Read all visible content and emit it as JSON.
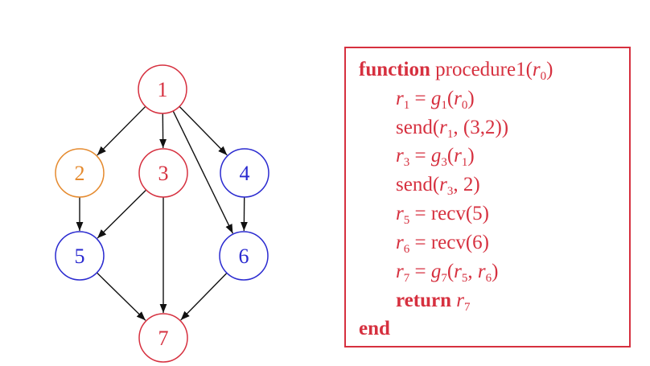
{
  "graph": {
    "colors": {
      "red": "#d6303f",
      "orange": "#e58a2e",
      "blue": "#2a2ad0",
      "edge": "#111111"
    },
    "nodes": [
      {
        "id": "1",
        "label": "1",
        "color": "red"
      },
      {
        "id": "2",
        "label": "2",
        "color": "orange"
      },
      {
        "id": "3",
        "label": "3",
        "color": "red"
      },
      {
        "id": "4",
        "label": "4",
        "color": "blue"
      },
      {
        "id": "5",
        "label": "5",
        "color": "blue"
      },
      {
        "id": "6",
        "label": "6",
        "color": "blue"
      },
      {
        "id": "7",
        "label": "7",
        "color": "red"
      }
    ],
    "edges": [
      {
        "from": "1",
        "to": "2"
      },
      {
        "from": "1",
        "to": "3"
      },
      {
        "from": "1",
        "to": "4"
      },
      {
        "from": "1",
        "to": "6"
      },
      {
        "from": "2",
        "to": "5"
      },
      {
        "from": "3",
        "to": "5"
      },
      {
        "from": "3",
        "to": "7"
      },
      {
        "from": "4",
        "to": "6"
      },
      {
        "from": "5",
        "to": "7"
      },
      {
        "from": "6",
        "to": "7"
      }
    ]
  },
  "code": {
    "l1": {
      "kw": "function",
      "name": "procedure1(",
      "arg": "r",
      "argsub": "0",
      "close": ")"
    },
    "l2": {
      "lhs": "r",
      "lhssub": "1",
      "eq": " = ",
      "fn": "g",
      "fnsub": "1",
      "open": "(",
      "arg": "r",
      "argsub": "0",
      "close": ")"
    },
    "l3": {
      "text": "send(",
      "arg": "r",
      "argsub": "1",
      "rest": ", (3,2))"
    },
    "l4": {
      "lhs": "r",
      "lhssub": "3",
      "eq": " = ",
      "fn": "g",
      "fnsub": "3",
      "open": "(",
      "arg": "r",
      "argsub": "1",
      "close": ")"
    },
    "l5": {
      "text": "send(",
      "arg": "r",
      "argsub": "3",
      "rest": ", 2)"
    },
    "l6": {
      "lhs": "r",
      "lhssub": "5",
      "eq": " = ",
      "rest": "recv(5)"
    },
    "l7": {
      "lhs": "r",
      "lhssub": "6",
      "eq": " = ",
      "rest": "recv(6)"
    },
    "l8": {
      "lhs": "r",
      "lhssub": "7",
      "eq": " = ",
      "fn": "g",
      "fnsub": "7",
      "open": "(",
      "a1": "r",
      "a1sub": "5",
      "comma": ", ",
      "a2": "r",
      "a2sub": "6",
      "close": ")"
    },
    "l9": {
      "kw": "return",
      "var": "r",
      "varsub": "7"
    },
    "l10": {
      "kw": "end"
    }
  }
}
